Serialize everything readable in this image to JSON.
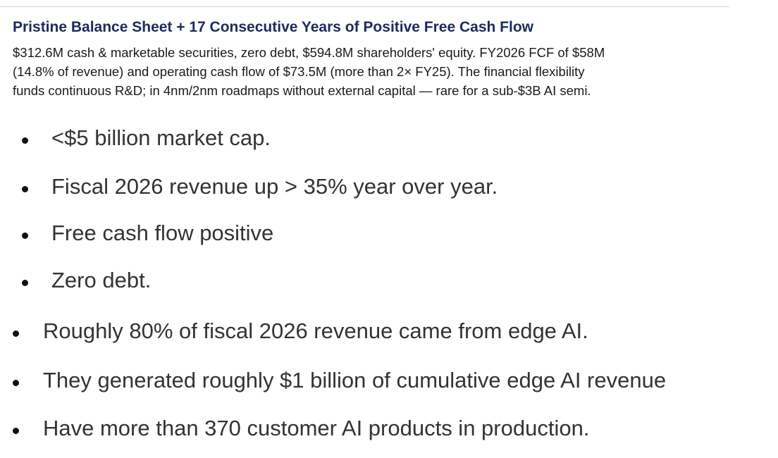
{
  "header": {
    "title": "Pristine Balance Sheet + 17 Consecutive Years of Positive Free Cash Flow",
    "body_lines": [
      "$312.6M cash & marketable securities, zero debt, $594.8M shareholders' equity. FY2026 FCF of $58M",
      "(14.8% of revenue) and operating cash flow of $73.5M (more than 2× FY25). The financial flexibility",
      "funds continuous R&D; in 4nm/2nm roadmaps without external capital — rare for a sub-$3B AI semi."
    ]
  },
  "list_1": [
    "<$5 billion market cap.",
    "Fiscal 2026 revenue up > 35% year over year.",
    "Free cash flow positive",
    "Zero debt."
  ],
  "list_2": [
    "Roughly 80% of fiscal 2026 revenue came from edge AI.",
    "They generated roughly $1 billion of cumulative edge AI revenue",
    "Have more than 370 customer AI products in production."
  ]
}
